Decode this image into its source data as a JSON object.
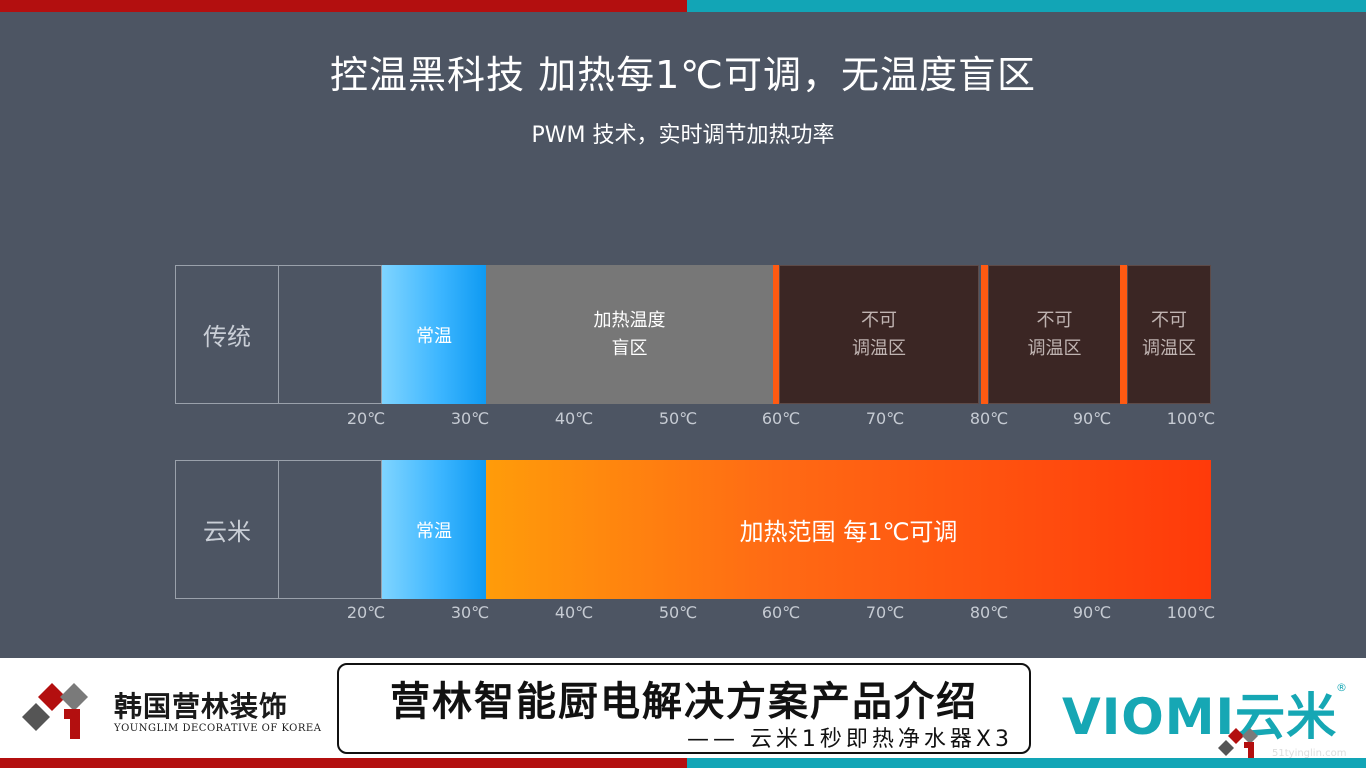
{
  "header": {
    "title": "控温黑科技  加热每1℃可调，无温度盲区",
    "subtitle": "PWM 技术，实时调节加热功率"
  },
  "traditional": {
    "label": "传统",
    "normal": "常温",
    "blind_line1": "加热温度",
    "blind_line2": "盲区",
    "zones": [
      {
        "line1": "不可",
        "line2": "调温区"
      },
      {
        "line1": "不可",
        "line2": "调温区"
      },
      {
        "line1": "不可",
        "line2": "调温区"
      }
    ]
  },
  "yunmi": {
    "label": "云米",
    "normal": "常温",
    "heat": "加热范围 每1℃可调"
  },
  "ticks": [
    "20℃",
    "30℃",
    "40℃",
    "50℃",
    "60℃",
    "70℃",
    "80℃",
    "90℃",
    "100℃"
  ],
  "footer": {
    "left_logo_cn": "韩国营林装饰",
    "left_logo_en": "YOUNGLIM DECORATIVE OF KOREA",
    "center_title": "营林智能厨电解决方案产品介绍",
    "center_sub": "—— 云米1秒即热净水器X3",
    "right_logo": "VIOMI云米",
    "right_logo_reg": "®",
    "watermark": "51tyinglin.com"
  },
  "colors": {
    "background": "#4d5563",
    "brand_red": "#b30f0f",
    "brand_teal": "#12a5b6",
    "heat_orange": "#ff6a14",
    "normal_blue": "#3db6ff"
  }
}
